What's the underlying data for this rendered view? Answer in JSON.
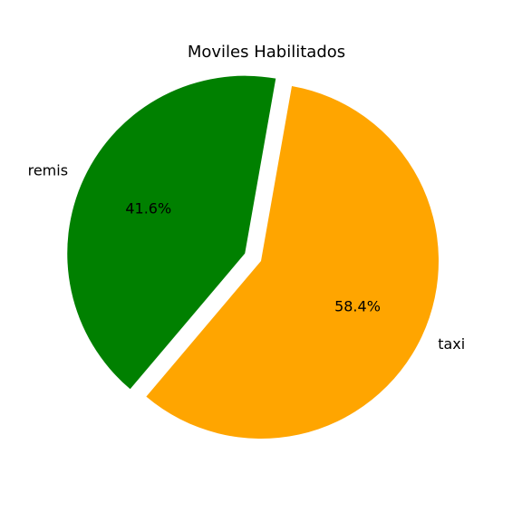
{
  "chart_data": {
    "type": "pie",
    "title": "Moviles Habilitados",
    "slices": [
      {
        "label": "remis",
        "value": 41.6,
        "pct_label": "41.6%",
        "color": "#008000",
        "exploded": true
      },
      {
        "label": "taxi",
        "value": 58.4,
        "pct_label": "58.4%",
        "color": "#FFA500",
        "exploded": false
      }
    ],
    "legend": "none"
  }
}
